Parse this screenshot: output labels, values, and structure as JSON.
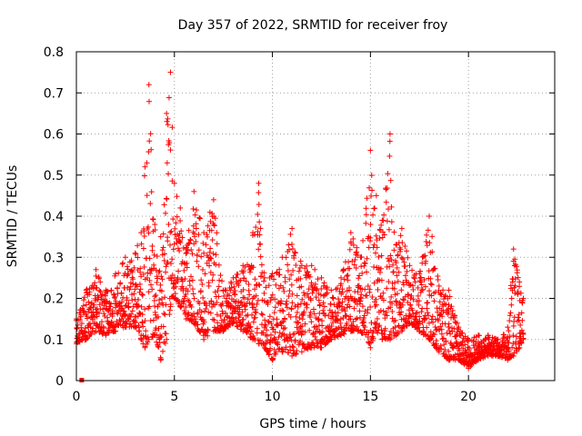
{
  "chart_data": {
    "type": "scatter",
    "title": "Day 357 of 2022, SRMTID for receiver froy",
    "xlabel": "GPS time / hours",
    "ylabel": "SRMTID / TECUs",
    "xlim": [
      0,
      24.4
    ],
    "ylim": [
      0,
      0.8
    ],
    "xticks": [
      0,
      5,
      10,
      15,
      20
    ],
    "xtick_labels": [
      "0",
      "5",
      "10",
      "15",
      "20"
    ],
    "yticks": [
      0,
      0.1,
      0.2,
      0.3,
      0.4,
      0.5,
      0.6,
      0.7,
      0.8
    ],
    "ytick_labels": [
      "0",
      "0.1",
      "0.2",
      "0.3",
      "0.4",
      "0.5",
      "0.6",
      "0.7",
      "0.8"
    ],
    "grid": true,
    "marker": "+",
    "series": [
      {
        "name": "SRMTID",
        "color": "#ff0000",
        "envelope_x": [
          0.0,
          0.5,
          1.0,
          1.5,
          2.0,
          2.5,
          3.0,
          3.3,
          3.5,
          3.7,
          4.0,
          4.3,
          4.6,
          4.8,
          5.0,
          5.3,
          5.6,
          6.0,
          6.5,
          7.0,
          7.5,
          8.0,
          8.5,
          9.0,
          9.3,
          9.6,
          10.0,
          10.5,
          11.0,
          11.5,
          12.0,
          12.5,
          13.0,
          13.5,
          14.0,
          14.5,
          15.0,
          15.3,
          15.6,
          16.0,
          16.3,
          16.6,
          17.0,
          17.5,
          18.0,
          18.5,
          19.0,
          19.5,
          20.0,
          20.5,
          21.0,
          21.5,
          22.0,
          22.3,
          22.6,
          22.8
        ],
        "envelope_lo": [
          0.09,
          0.1,
          0.12,
          0.11,
          0.12,
          0.13,
          0.13,
          0.1,
          0.08,
          0.1,
          0.11,
          0.05,
          0.1,
          0.18,
          0.2,
          0.18,
          0.15,
          0.14,
          0.1,
          0.12,
          0.12,
          0.14,
          0.12,
          0.1,
          0.09,
          0.08,
          0.05,
          0.07,
          0.06,
          0.07,
          0.08,
          0.08,
          0.1,
          0.11,
          0.12,
          0.12,
          0.08,
          0.12,
          0.1,
          0.1,
          0.11,
          0.12,
          0.14,
          0.12,
          0.1,
          0.07,
          0.05,
          0.05,
          0.03,
          0.05,
          0.06,
          0.06,
          0.05,
          0.06,
          0.08,
          0.1
        ],
        "envelope_hi": [
          0.15,
          0.22,
          0.27,
          0.22,
          0.26,
          0.3,
          0.31,
          0.36,
          0.52,
          0.72,
          0.38,
          0.35,
          0.65,
          0.75,
          0.48,
          0.42,
          0.32,
          0.46,
          0.36,
          0.44,
          0.22,
          0.25,
          0.28,
          0.36,
          0.48,
          0.25,
          0.26,
          0.3,
          0.37,
          0.28,
          0.28,
          0.25,
          0.22,
          0.25,
          0.36,
          0.3,
          0.56,
          0.45,
          0.39,
          0.6,
          0.33,
          0.37,
          0.28,
          0.26,
          0.4,
          0.23,
          0.22,
          0.13,
          0.1,
          0.11,
          0.11,
          0.1,
          0.13,
          0.32,
          0.24,
          0.2
        ],
        "extra_points": [
          [
            0.25,
            0.0
          ]
        ]
      }
    ]
  }
}
